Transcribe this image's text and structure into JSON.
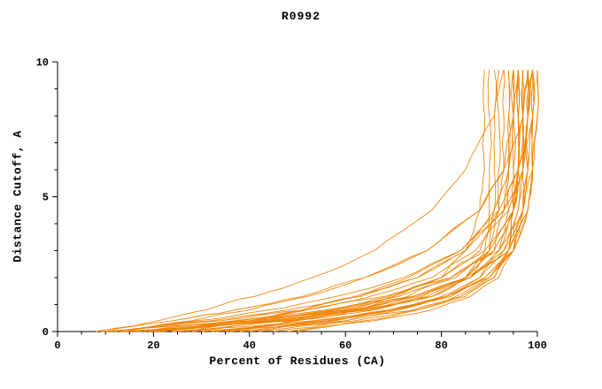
{
  "figure": {
    "background": "#ffffff",
    "axis_color": "#000000",
    "text_color": "#000000",
    "line_color": "#f08200"
  },
  "chart_data": {
    "type": "line",
    "title": "R0992",
    "xlabel": "Percent of Residues (CA)",
    "ylabel": "Distance Cutoff, A",
    "xlim": [
      0,
      100
    ],
    "ylim": [
      0,
      10
    ],
    "x_ticks": [
      0,
      20,
      40,
      60,
      80,
      100
    ],
    "y_ticks": [
      0,
      5,
      10
    ],
    "x_minor_step": 5,
    "y_minor_step": 1,
    "grid": false,
    "legend": "none",
    "y_samples": [
      0,
      0.4,
      0.8,
      1.3,
      2,
      3,
      4.5,
      6,
      8,
      9.7
    ],
    "series": [
      [
        8,
        24,
        37,
        51,
        64,
        77,
        88,
        93,
        95,
        96
      ],
      [
        10,
        29,
        44,
        58,
        72,
        84,
        93,
        97,
        98,
        99
      ],
      [
        12,
        32,
        48,
        62,
        75,
        85,
        91,
        94,
        95,
        95
      ],
      [
        9,
        34,
        52,
        68,
        82,
        92,
        97,
        99,
        100,
        100
      ],
      [
        15,
        40,
        57,
        71,
        83,
        91,
        95,
        96,
        96,
        96
      ],
      [
        11,
        40,
        59,
        74,
        86,
        94,
        97,
        98,
        98,
        98
      ],
      [
        14,
        43,
        61,
        75,
        85,
        91,
        93,
        94,
        94,
        94
      ],
      [
        18,
        37,
        52,
        65,
        78,
        87,
        94,
        96,
        97,
        97
      ],
      [
        20,
        44,
        61,
        74,
        86,
        94,
        98,
        99,
        99,
        99
      ],
      [
        16,
        45,
        63,
        76,
        85,
        90,
        92,
        92,
        92,
        92
      ],
      [
        22,
        38,
        51,
        63,
        75,
        85,
        93,
        96,
        97,
        98
      ],
      [
        25,
        48,
        64,
        77,
        86,
        92,
        95,
        96,
        96,
        96
      ],
      [
        13,
        46,
        65,
        78,
        85,
        89,
        90,
        90,
        90,
        90
      ],
      [
        28,
        47,
        62,
        74,
        85,
        93,
        97,
        98,
        99,
        99
      ],
      [
        30,
        54,
        69,
        81,
        90,
        94,
        96,
        97,
        97,
        97
      ],
      [
        17,
        40,
        56,
        69,
        80,
        88,
        92,
        93,
        93,
        93
      ],
      [
        35,
        50,
        62,
        73,
        82,
        90,
        95,
        97,
        98,
        98
      ],
      [
        24,
        53,
        70,
        82,
        90,
        94,
        95,
        95,
        95,
        95
      ],
      [
        40,
        58,
        70,
        81,
        89,
        95,
        98,
        99,
        99,
        99
      ],
      [
        32,
        56,
        70,
        81,
        88,
        92,
        94,
        94,
        94,
        94
      ],
      [
        45,
        60,
        71,
        81,
        89,
        95,
        98,
        99,
        100,
        100
      ],
      [
        38,
        57,
        70,
        80,
        88,
        93,
        95,
        96,
        96,
        96
      ],
      [
        50,
        64,
        75,
        83,
        90,
        95,
        97,
        98,
        98,
        98
      ],
      [
        21,
        49,
        66,
        78,
        86,
        90,
        91,
        91,
        91,
        91
      ],
      [
        27,
        40,
        51,
        62,
        73,
        84,
        92,
        96,
        99,
        99
      ],
      [
        33,
        60,
        75,
        85,
        91,
        94,
        95,
        95,
        95,
        95
      ],
      [
        42,
        62,
        74,
        84,
        91,
        95,
        97,
        97,
        97,
        97
      ],
      [
        19,
        42,
        58,
        70,
        80,
        85,
        88,
        89,
        89,
        89
      ],
      [
        36,
        49,
        60,
        70,
        80,
        89,
        95,
        97,
        98,
        99
      ],
      [
        48,
        66,
        78,
        86,
        92,
        95,
        96,
        96,
        96,
        96
      ],
      [
        10,
        21,
        31,
        41,
        53,
        66,
        78,
        85,
        91,
        93
      ],
      [
        14,
        28,
        40,
        52,
        64,
        77,
        88,
        93,
        97,
        98
      ]
    ]
  }
}
